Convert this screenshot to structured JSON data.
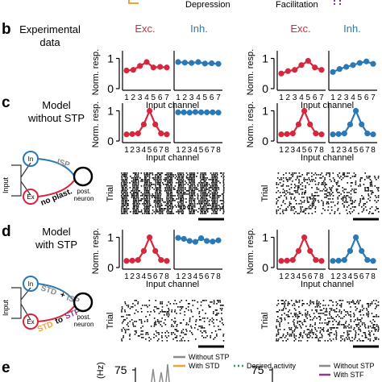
{
  "top_labels": {
    "left": "Depression",
    "right": "Facilitation"
  },
  "panels": {
    "b": {
      "letter": "b",
      "title_line1": "Experimental",
      "title_line2": "data"
    },
    "c": {
      "letter": "c",
      "title_line1": "Model",
      "title_line2": "without STP"
    },
    "d": {
      "letter": "d",
      "title_line1": "Model",
      "title_line2": "with STP"
    },
    "e": {
      "letter": "e"
    }
  },
  "axis": {
    "ylabel": "Norm. resp.",
    "xlabel": "Input channel",
    "trial_label": "Trial",
    "yticks": [
      "0",
      "1"
    ]
  },
  "legend_exc_inh": {
    "exc": "Exc.",
    "inh": "Inh."
  },
  "diagram_c": {
    "input": "Input",
    "in": "In",
    "ex": "Ex",
    "isp": "ISP",
    "no_plast": "no plast.",
    "post1": "post.",
    "post2": "neuron"
  },
  "diagram_d": {
    "input": "Input",
    "in": "In",
    "ex": "Ex",
    "std": "STD",
    "plus": "+",
    "isp": "ISP",
    "std2": "STD",
    "to": "to",
    "stf": "STF",
    "post1": "post.",
    "post2": "neuron"
  },
  "panel_e": {
    "ylabel": "(Hz)",
    "ytick": "75",
    "legend_left": [
      "Without STP",
      "With STD",
      "Desired activity"
    ],
    "legend_right": [
      "Without STP",
      "With STF"
    ]
  },
  "colors": {
    "exc": "#d6273f",
    "inh": "#2a78b5",
    "gray": "#8a8a8a",
    "std": "#f2a23a",
    "stf": "#8b3a8f",
    "desired": "#2e9e58"
  },
  "chart_data": [
    {
      "type": "line",
      "panel": "b",
      "side": "Depression",
      "ylim": [
        0,
        1.2
      ],
      "x": [
        1,
        2,
        3,
        4,
        5,
        6,
        7
      ],
      "series": [
        {
          "name": "Exc.",
          "values": [
            0.6,
            0.62,
            0.75,
            0.88,
            0.7,
            0.72,
            0.7
          ]
        },
        {
          "name": "Inh.",
          "values": [
            0.88,
            0.86,
            0.85,
            0.88,
            0.83,
            0.84,
            0.82
          ]
        }
      ]
    },
    {
      "type": "line",
      "panel": "b",
      "side": "Facilitation",
      "ylim": [
        0,
        1.2
      ],
      "x": [
        1,
        2,
        3,
        4,
        5,
        6,
        7
      ],
      "series": [
        {
          "name": "Exc.",
          "values": [
            0.5,
            0.58,
            0.62,
            0.78,
            0.92,
            0.7,
            0.62
          ]
        },
        {
          "name": "Inh.",
          "values": [
            0.55,
            0.65,
            0.72,
            0.78,
            0.85,
            0.9,
            0.82
          ]
        }
      ]
    },
    {
      "type": "line",
      "panel": "c",
      "side": "Depression",
      "ylim": [
        0,
        1.2
      ],
      "x": [
        1,
        2,
        3,
        4,
        5,
        6,
        7,
        8
      ],
      "series": [
        {
          "name": "Exc.",
          "values": [
            0.22,
            0.23,
            0.25,
            0.55,
            1.0,
            0.55,
            0.25,
            0.22
          ]
        },
        {
          "name": "Inh.",
          "values": [
            0.95,
            0.95,
            0.94,
            0.96,
            0.95,
            0.95,
            0.95,
            0.94
          ]
        }
      ]
    },
    {
      "type": "line",
      "panel": "c",
      "side": "Facilitation",
      "ylim": [
        0,
        1.2
      ],
      "x": [
        1,
        2,
        3,
        4,
        5,
        6,
        7,
        8
      ],
      "series": [
        {
          "name": "Exc.",
          "values": [
            0.22,
            0.23,
            0.25,
            0.55,
            1.0,
            0.55,
            0.25,
            0.22
          ]
        },
        {
          "name": "Inh.",
          "values": [
            0.22,
            0.23,
            0.25,
            0.55,
            1.0,
            0.55,
            0.25,
            0.22
          ]
        }
      ]
    },
    {
      "type": "line",
      "panel": "d",
      "side": "Depression",
      "ylim": [
        0,
        1.2
      ],
      "x": [
        1,
        2,
        3,
        4,
        5,
        6,
        7,
        8
      ],
      "series": [
        {
          "name": "Exc.",
          "values": [
            0.22,
            0.23,
            0.25,
            0.55,
            1.0,
            0.55,
            0.25,
            0.22
          ]
        },
        {
          "name": "Inh.",
          "values": [
            0.98,
            0.95,
            0.88,
            0.85,
            0.97,
            0.88,
            0.86,
            0.9
          ]
        }
      ]
    },
    {
      "type": "line",
      "panel": "d",
      "side": "Facilitation",
      "ylim": [
        0,
        1.2
      ],
      "x": [
        1,
        2,
        3,
        4,
        5,
        6,
        7,
        8
      ],
      "series": [
        {
          "name": "Exc.",
          "values": [
            0.22,
            0.23,
            0.25,
            0.55,
            1.0,
            0.55,
            0.25,
            0.22
          ]
        },
        {
          "name": "Inh.",
          "values": [
            0.22,
            0.23,
            0.25,
            0.55,
            1.0,
            0.55,
            0.25,
            0.22
          ]
        }
      ]
    }
  ],
  "rasters": [
    {
      "panel": "c",
      "side": "Depression",
      "density": 0.95
    },
    {
      "panel": "c",
      "side": "Facilitation",
      "density": 0.28
    },
    {
      "panel": "d",
      "side": "Depression",
      "density": 0.2
    },
    {
      "panel": "d",
      "side": "Facilitation",
      "density": 0.32
    }
  ]
}
